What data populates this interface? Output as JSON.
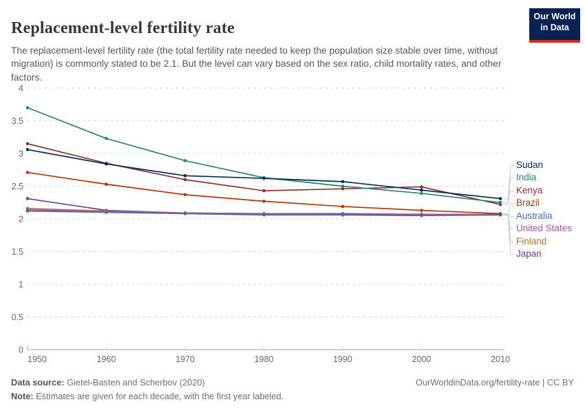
{
  "header": {
    "title": "Replacement-level fertility rate",
    "subtitle": "The replacement-level fertility rate (the total fertility rate needed to keep the population size stable over time, without migration) is commonly stated to be 2.1. But the level can vary based on the sex ratio, child mortality rates, and other factors.",
    "logo": {
      "line1": "Our World",
      "line2": "in Data",
      "bg_color": "#072153",
      "accent_color": "#D8281E"
    }
  },
  "chart_data": {
    "type": "line",
    "x": [
      1950,
      1960,
      1970,
      1980,
      1990,
      2000,
      2010
    ],
    "y_ticks": [
      "0",
      "0.5",
      "1",
      "1.5",
      "2",
      "2.5",
      "3",
      "3.5",
      "4"
    ],
    "ylim": [
      0,
      4
    ],
    "grid": "horizontal-dashed",
    "legend_position": "right",
    "marker": "point-per-decade",
    "series": [
      {
        "name": "Sudan",
        "color": "#00295B",
        "values": [
          3.06,
          2.84,
          2.66,
          2.62,
          2.57,
          2.44,
          2.31
        ]
      },
      {
        "name": "India",
        "color": "#2C8465",
        "values": [
          3.7,
          3.23,
          2.89,
          2.63,
          2.5,
          2.39,
          2.25
        ]
      },
      {
        "name": "Kenya",
        "color": "#883039",
        "values": [
          3.15,
          2.85,
          2.6,
          2.43,
          2.46,
          2.49,
          2.22
        ]
      },
      {
        "name": "Brazil",
        "color": "#B13507",
        "values": [
          2.71,
          2.53,
          2.37,
          2.27,
          2.19,
          2.13,
          2.08
        ]
      },
      {
        "name": "Australia",
        "color": "#4C6A9C",
        "values": [
          2.12,
          2.1,
          2.08,
          2.06,
          2.06,
          2.05,
          2.06
        ]
      },
      {
        "name": "United States",
        "color": "#A2559C",
        "values": [
          2.14,
          2.11,
          2.09,
          2.08,
          2.07,
          2.07,
          2.07
        ]
      },
      {
        "name": "Finland",
        "color": "#AD7936",
        "values": [
          2.16,
          2.12,
          2.09,
          2.07,
          2.06,
          2.06,
          2.06
        ]
      },
      {
        "name": "Japan",
        "color": "#6D3E91",
        "values": [
          2.31,
          2.13,
          2.09,
          2.08,
          2.08,
          2.07,
          2.07
        ]
      }
    ],
    "colors": {
      "grid": "#dcdcdc",
      "axis": "#a3a3a3",
      "tick_text": "#666666",
      "connector": "#cccccc"
    }
  },
  "footer": {
    "source_label": "Data source:",
    "source_text": "Gietel-Basten and Scherbov (2020)",
    "rights": "OurWorldinData.org/fertility-rate | CC BY",
    "note_label": "Note:",
    "note_text": "Estimates are given for each decade, with the first year labeled."
  }
}
